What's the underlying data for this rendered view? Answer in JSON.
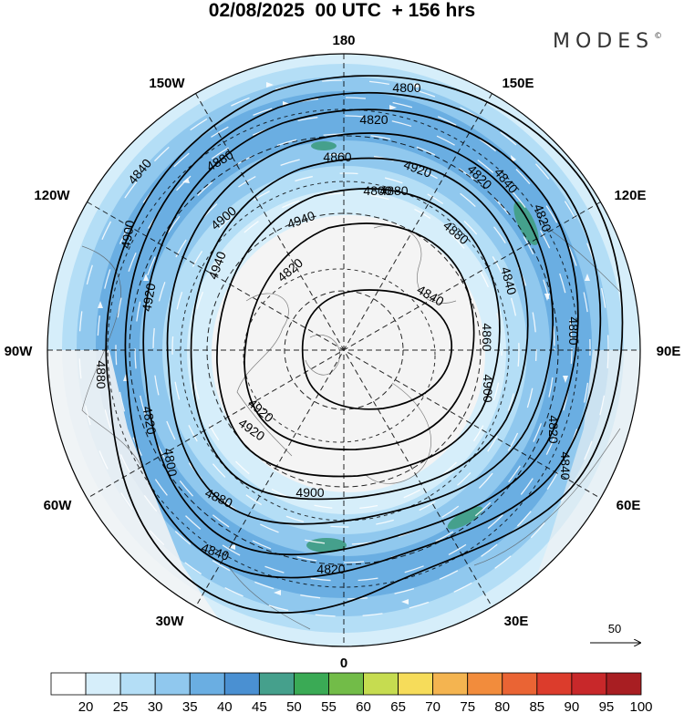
{
  "title": "02/08/2025  00 UTC  + 156 hrs",
  "brand": "MODES",
  "brand_mark": "©",
  "longitude_labels": {
    "top": "180",
    "bottom": "0",
    "left": "90W",
    "right": "90E",
    "upper_left": "150W",
    "upper_right": "150E",
    "left_upper": "120W",
    "right_upper": "120E",
    "left_lower": "60W",
    "right_lower": "60E",
    "lower_left": "30W",
    "lower_right": "30E"
  },
  "contours": [
    {
      "value": "4800"
    },
    {
      "value": "4820"
    },
    {
      "value": "4840"
    },
    {
      "value": "4860"
    },
    {
      "value": "4880"
    },
    {
      "value": "4900"
    },
    {
      "value": "4920"
    },
    {
      "value": "4940"
    }
  ],
  "contour_labels": [
    {
      "text": "4800"
    },
    {
      "text": "4820"
    },
    {
      "text": "4840"
    },
    {
      "text": "4880"
    },
    {
      "text": "4860"
    },
    {
      "text": "4900"
    },
    {
      "text": "4920"
    },
    {
      "text": "4940"
    },
    {
      "text": "4800"
    },
    {
      "text": "4820"
    },
    {
      "text": "4840"
    },
    {
      "text": "4880"
    },
    {
      "text": "4900"
    },
    {
      "text": "4920"
    },
    {
      "text": "4940"
    },
    {
      "text": "4840"
    },
    {
      "text": "4820"
    },
    {
      "text": "4800"
    },
    {
      "text": "4820"
    },
    {
      "text": "4840"
    },
    {
      "text": "4860"
    },
    {
      "text": "4880"
    },
    {
      "text": "4900"
    },
    {
      "text": "4920"
    },
    {
      "text": "4920"
    },
    {
      "text": "4900"
    },
    {
      "text": "4880"
    },
    {
      "text": "4840"
    },
    {
      "text": "4820"
    },
    {
      "text": "4800"
    },
    {
      "text": "4820"
    },
    {
      "text": "4840"
    },
    {
      "text": "4820"
    },
    {
      "text": "4880"
    }
  ],
  "reference_vector": {
    "label": "50"
  },
  "colorbar": {
    "labels": [
      "20",
      "25",
      "30",
      "35",
      "40",
      "45",
      "50",
      "55",
      "60",
      "65",
      "70",
      "75",
      "80",
      "85",
      "90",
      "95",
      "100"
    ],
    "colors": [
      "#ffffff",
      "#d6eefa",
      "#b4def6",
      "#90c8ee",
      "#6aaee2",
      "#4a90d2",
      "#45a08c",
      "#3aaa55",
      "#72bc48",
      "#c6dc50",
      "#f6dc5a",
      "#f4b450",
      "#f28c3c",
      "#ea6434",
      "#dc3c2c",
      "#c8282a",
      "#a81e22"
    ]
  }
}
